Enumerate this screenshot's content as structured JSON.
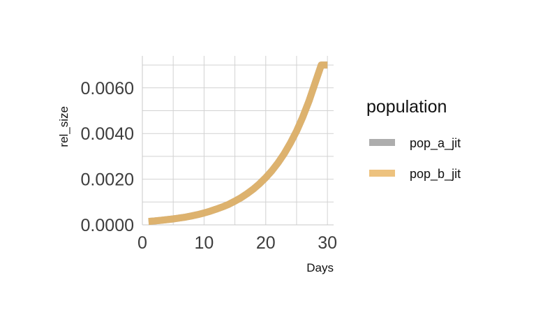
{
  "chart_data": {
    "type": "line",
    "xlabel": "Days",
    "ylabel": "rel_size",
    "xlim": [
      0,
      31
    ],
    "ylim": [
      0,
      0.0074
    ],
    "x_ticks": [
      0,
      10,
      20,
      30
    ],
    "x_tick_labels": [
      "0",
      "10",
      "20",
      "30"
    ],
    "y_ticks": [
      0,
      0.002,
      0.004,
      0.006
    ],
    "y_tick_labels": [
      "0.0000",
      "0.0020",
      "0.0040",
      "0.0060"
    ],
    "grid": true,
    "legend": {
      "title": "population",
      "position": "right"
    },
    "x": [
      1,
      2,
      3,
      4,
      5,
      6,
      7,
      8,
      9,
      10,
      11,
      12,
      13,
      14,
      15,
      16,
      17,
      18,
      19,
      20,
      21,
      22,
      23,
      24,
      25,
      26,
      27,
      28,
      29,
      30
    ],
    "series": [
      {
        "name": "pop_a_jit",
        "color": "#999999",
        "values": [
          0.00015,
          0.00017,
          0.0002,
          0.00023,
          0.00026,
          0.0003,
          0.00034,
          0.00039,
          0.00045,
          0.00052,
          0.0006,
          0.00069,
          0.00079,
          0.0009,
          0.00104,
          0.00119,
          0.00137,
          0.00157,
          0.0018,
          0.00207,
          0.00237,
          0.00272,
          0.00312,
          0.00358,
          0.00411,
          0.00472,
          0.00541,
          0.00621,
          0.007,
          0.007
        ]
      },
      {
        "name": "pop_b_jit",
        "color": "#E8B35E",
        "values": [
          0.00015,
          0.00017,
          0.0002,
          0.00023,
          0.00026,
          0.0003,
          0.00034,
          0.00039,
          0.00045,
          0.00052,
          0.0006,
          0.00069,
          0.00079,
          0.0009,
          0.00104,
          0.00119,
          0.00137,
          0.00157,
          0.0018,
          0.00207,
          0.00237,
          0.00272,
          0.00312,
          0.00358,
          0.00411,
          0.00472,
          0.00541,
          0.00621,
          0.007,
          0.007
        ]
      }
    ]
  }
}
